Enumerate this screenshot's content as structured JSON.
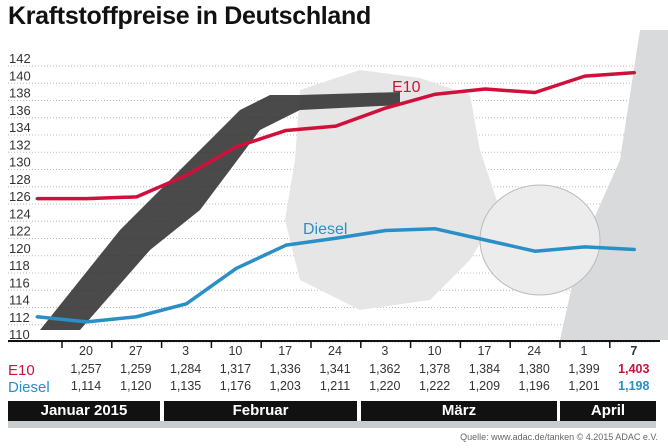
{
  "title": "Kraftstoffpreise in Deutschland",
  "colors": {
    "e10": "#d0103a",
    "diesel": "#2a8fc7"
  },
  "chart_data": {
    "type": "line",
    "title": "Kraftstoffpreise in Deutschland",
    "ylim": [
      110,
      142
    ],
    "yticks": [
      110,
      112,
      114,
      116,
      118,
      120,
      122,
      124,
      126,
      128,
      130,
      132,
      134,
      136,
      138,
      140,
      142
    ],
    "grid": true,
    "categories": [
      "",
      "20",
      "27",
      "3",
      "10",
      "17",
      "24",
      "3",
      "10",
      "17",
      "24",
      "1",
      "7"
    ],
    "series": [
      {
        "name": "E10",
        "values": [
          125.7,
          125.7,
          125.9,
          128.4,
          131.7,
          133.6,
          134.1,
          136.2,
          137.8,
          138.4,
          138.0,
          139.9,
          140.3
        ]
      },
      {
        "name": "Diesel",
        "values": [
          112.0,
          111.4,
          112.0,
          113.5,
          117.6,
          120.3,
          121.1,
          122.0,
          122.2,
          120.9,
          119.6,
          120.1,
          119.8
        ]
      }
    ]
  },
  "table": {
    "dates": [
      "20",
      "27",
      "3",
      "10",
      "17",
      "24",
      "3",
      "10",
      "17",
      "24",
      "1",
      "7"
    ],
    "e10_label": "E10",
    "diesel_label": "Diesel",
    "e10": [
      "1,257",
      "1,259",
      "1,284",
      "1,317",
      "1,336",
      "1,341",
      "1,362",
      "1,378",
      "1,384",
      "1,380",
      "1,399",
      "1,403"
    ],
    "diesel": [
      "1,114",
      "1,120",
      "1,135",
      "1,176",
      "1,203",
      "1,211",
      "1,220",
      "1,222",
      "1,209",
      "1,196",
      "1,201",
      "1,198"
    ]
  },
  "months": [
    "Januar 2015",
    "Februar",
    "März",
    "April"
  ],
  "source": "Quelle: www.adac.de/tanken   © 4.2015  ADAC e.V."
}
